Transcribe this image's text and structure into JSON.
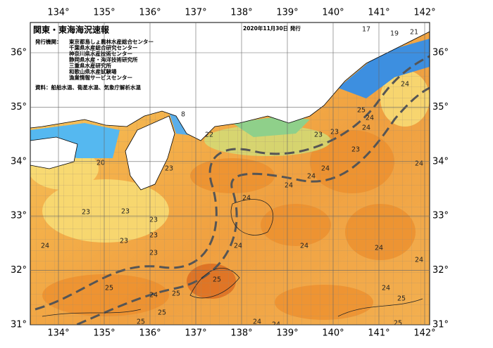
{
  "header": {
    "title": "関東・東海海況速報",
    "date": "2020年11月30日 発行"
  },
  "issuers_label": "発行機関：",
  "issuers": [
    "東京都島しょ農林水産総合センター",
    "千葉県水産総合研究センター",
    "神奈川県水産技術センター",
    "静岡県水産・海洋技術研究所",
    "三重県水産研究所",
    "和歌山県水産試験場",
    "漁業情報サービスセンター"
  ],
  "source": "資料：船舶水温、衛星水温、気象庁解析水温",
  "lon_ticks": [
    {
      "value": 134,
      "label": "134°"
    },
    {
      "value": 135,
      "label": "135°"
    },
    {
      "value": 136,
      "label": "136°"
    },
    {
      "value": 137,
      "label": "137°"
    },
    {
      "value": 138,
      "label": "138°"
    },
    {
      "value": 139,
      "label": "139°"
    },
    {
      "value": 140,
      "label": "140°"
    },
    {
      "value": 141,
      "label": "141°"
    },
    {
      "value": 142,
      "label": "142°"
    }
  ],
  "lat_ticks": [
    {
      "value": 36,
      "label": "36°"
    },
    {
      "value": 35,
      "label": "35°"
    },
    {
      "value": 34,
      "label": "34°"
    },
    {
      "value": 33,
      "label": "33°"
    },
    {
      "value": 32,
      "label": "32°"
    },
    {
      "value": 31,
      "label": "31°"
    }
  ],
  "contour_labels": [
    "17",
    "19",
    "21",
    "24",
    "25",
    "24",
    "24",
    "23",
    "23",
    "22",
    "8",
    "20",
    "23",
    "24",
    "24",
    "23",
    "24",
    "24",
    "24",
    "23",
    "23",
    "23",
    "23",
    "24",
    "23",
    "24",
    "24",
    "23",
    "24",
    "24",
    "25",
    "25",
    "25",
    "24",
    "25",
    "24",
    "24",
    "25",
    "24",
    "25",
    "25"
  ]
}
